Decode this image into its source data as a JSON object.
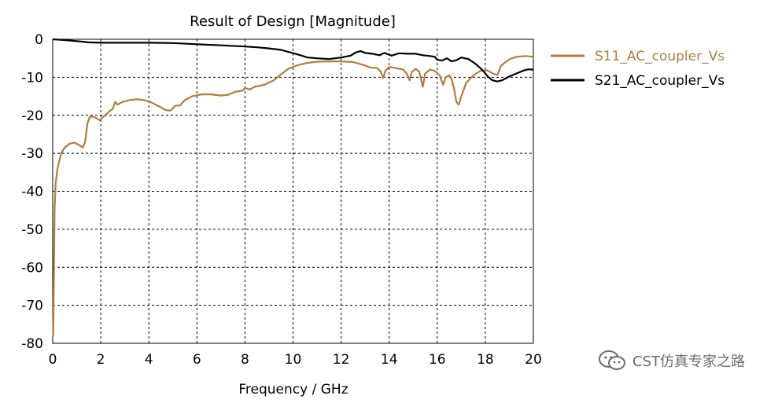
{
  "chart_data": {
    "type": "line",
    "title": "Result of Design [Magnitude]",
    "xlabel": "Frequency / GHz",
    "ylabel": "",
    "xlim": [
      0,
      20
    ],
    "ylim": [
      -80,
      0
    ],
    "xticks": [
      0,
      2,
      4,
      6,
      8,
      10,
      12,
      14,
      16,
      18,
      20
    ],
    "yticks": [
      0,
      -10,
      -20,
      -30,
      -40,
      -50,
      -60,
      -70,
      -80
    ],
    "grid": true,
    "legend_position": "right",
    "series": [
      {
        "name": "S11_AC_coupler_Vs",
        "color": "#b07d3d",
        "points": [
          [
            0.02,
            -78
          ],
          [
            0.05,
            -62
          ],
          [
            0.08,
            -45
          ],
          [
            0.12,
            -38
          ],
          [
            0.2,
            -34
          ],
          [
            0.35,
            -30
          ],
          [
            0.5,
            -28.5
          ],
          [
            0.7,
            -27.5
          ],
          [
            0.9,
            -27.2
          ],
          [
            1.1,
            -27.8
          ],
          [
            1.25,
            -28.5
          ],
          [
            1.35,
            -27
          ],
          [
            1.45,
            -22
          ],
          [
            1.55,
            -20.3
          ],
          [
            1.75,
            -20.5
          ],
          [
            1.95,
            -21.3
          ],
          [
            2.15,
            -20.2
          ],
          [
            2.35,
            -19
          ],
          [
            2.5,
            -18.3
          ],
          [
            2.6,
            -16.5
          ],
          [
            2.7,
            -17.2
          ],
          [
            2.9,
            -16.5
          ],
          [
            3.2,
            -16
          ],
          [
            3.5,
            -15.8
          ],
          [
            3.8,
            -16
          ],
          [
            4.1,
            -16.6
          ],
          [
            4.4,
            -17.6
          ],
          [
            4.7,
            -18.6
          ],
          [
            4.9,
            -18.8
          ],
          [
            5.1,
            -17.5
          ],
          [
            5.3,
            -17.4
          ],
          [
            5.5,
            -16
          ],
          [
            5.8,
            -15
          ],
          [
            6.2,
            -14.5
          ],
          [
            6.6,
            -14.5
          ],
          [
            7.0,
            -14.8
          ],
          [
            7.3,
            -14.6
          ],
          [
            7.6,
            -13.8
          ],
          [
            7.9,
            -13.5
          ],
          [
            8.0,
            -12.8
          ],
          [
            8.2,
            -13.2
          ],
          [
            8.4,
            -12.5
          ],
          [
            8.8,
            -12
          ],
          [
            9.2,
            -10.8
          ],
          [
            9.5,
            -9.2
          ],
          [
            9.8,
            -7.8
          ],
          [
            10.2,
            -6.8
          ],
          [
            10.6,
            -6.2
          ],
          [
            11.0,
            -5.9
          ],
          [
            11.5,
            -5.8
          ],
          [
            12.0,
            -5.8
          ],
          [
            12.5,
            -6
          ],
          [
            12.9,
            -6.7
          ],
          [
            13.2,
            -7.4
          ],
          [
            13.5,
            -7.6
          ],
          [
            13.65,
            -8.5
          ],
          [
            13.75,
            -10.2
          ],
          [
            13.85,
            -8.2
          ],
          [
            14.0,
            -7.3
          ],
          [
            14.3,
            -7.6
          ],
          [
            14.6,
            -8
          ],
          [
            14.75,
            -9.2
          ],
          [
            14.85,
            -10.8
          ],
          [
            14.95,
            -8.5
          ],
          [
            15.1,
            -7.8
          ],
          [
            15.25,
            -8.5
          ],
          [
            15.4,
            -12.5
          ],
          [
            15.5,
            -9
          ],
          [
            15.7,
            -8
          ],
          [
            15.9,
            -8.3
          ],
          [
            16.1,
            -9.5
          ],
          [
            16.25,
            -12
          ],
          [
            16.35,
            -10
          ],
          [
            16.5,
            -9.5
          ],
          [
            16.6,
            -10.5
          ],
          [
            16.7,
            -13
          ],
          [
            16.8,
            -16.5
          ],
          [
            16.9,
            -17.2
          ],
          [
            17.0,
            -15
          ],
          [
            17.2,
            -11.5
          ],
          [
            17.5,
            -9.5
          ],
          [
            17.8,
            -8.3
          ],
          [
            18.1,
            -8.2
          ],
          [
            18.3,
            -9
          ],
          [
            18.5,
            -9.4
          ],
          [
            18.65,
            -7
          ],
          [
            18.8,
            -6.2
          ],
          [
            19.0,
            -5.3
          ],
          [
            19.3,
            -4.6
          ],
          [
            19.7,
            -4.4
          ],
          [
            20.0,
            -4.6
          ]
        ]
      },
      {
        "name": "S21_AC_coupler_Vs",
        "color": "#000000",
        "points": [
          [
            0,
            0
          ],
          [
            0.5,
            -0.2
          ],
          [
            1.0,
            -0.5
          ],
          [
            1.5,
            -0.8
          ],
          [
            2.0,
            -0.9
          ],
          [
            3.0,
            -0.9
          ],
          [
            4.0,
            -0.9
          ],
          [
            5.0,
            -1.0
          ],
          [
            6.0,
            -1.3
          ],
          [
            7.0,
            -1.6
          ],
          [
            8.0,
            -1.9
          ],
          [
            8.5,
            -2.1
          ],
          [
            9.0,
            -2.4
          ],
          [
            9.5,
            -2.8
          ],
          [
            9.8,
            -3.3
          ],
          [
            10.2,
            -4.0
          ],
          [
            10.6,
            -4.8
          ],
          [
            11.0,
            -5.0
          ],
          [
            11.5,
            -5.2
          ],
          [
            12.0,
            -4.8
          ],
          [
            12.4,
            -4.3
          ],
          [
            12.6,
            -3.5
          ],
          [
            12.8,
            -3.1
          ],
          [
            13.0,
            -3.6
          ],
          [
            13.3,
            -3.8
          ],
          [
            13.6,
            -4.2
          ],
          [
            13.8,
            -3.6
          ],
          [
            14.1,
            -4.3
          ],
          [
            14.4,
            -3.7
          ],
          [
            14.8,
            -3.8
          ],
          [
            15.1,
            -3.8
          ],
          [
            15.4,
            -4.2
          ],
          [
            15.7,
            -4.4
          ],
          [
            15.9,
            -4.6
          ],
          [
            16.0,
            -5.4
          ],
          [
            16.2,
            -5.6
          ],
          [
            16.4,
            -5.0
          ],
          [
            16.6,
            -5.8
          ],
          [
            16.8,
            -5.5
          ],
          [
            17.0,
            -4.8
          ],
          [
            17.3,
            -5.2
          ],
          [
            17.6,
            -6.5
          ],
          [
            17.9,
            -8.2
          ],
          [
            18.1,
            -9.8
          ],
          [
            18.3,
            -10.8
          ],
          [
            18.5,
            -11.1
          ],
          [
            18.7,
            -10.8
          ],
          [
            19.0,
            -9.8
          ],
          [
            19.3,
            -9.0
          ],
          [
            19.6,
            -8.2
          ],
          [
            19.8,
            -7.9
          ],
          [
            20.0,
            -8.0
          ]
        ]
      }
    ]
  },
  "watermark": {
    "text": "CST仿真专家之路",
    "icon": "wechat-icon"
  }
}
